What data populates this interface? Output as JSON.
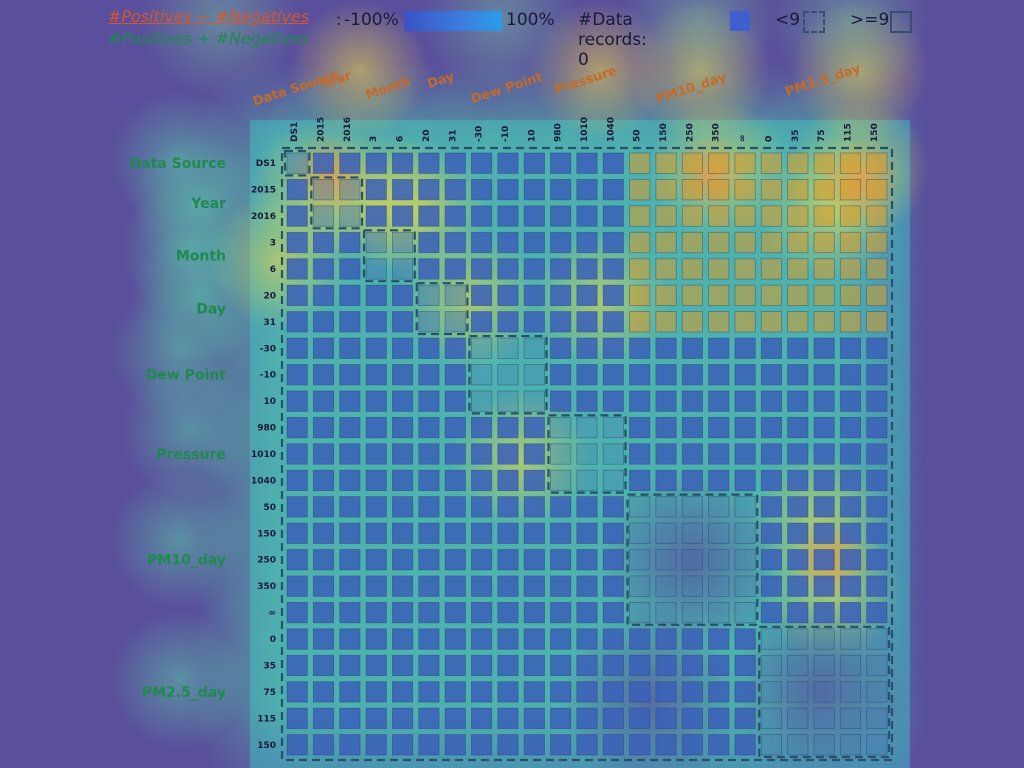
{
  "legend": {
    "numerator": "#Positives − #Negatives",
    "denominator": "#Positives + #Negatives",
    "colon": ":",
    "min_label": "-100%",
    "max_label": "100%",
    "records_label": "#Data records: 0",
    "lt_label": "<9",
    "ge_label": ">=9"
  },
  "colors": {
    "background": "#5a4f9c",
    "cell": "#3b5fb8",
    "cell_muted": "#4a64c8",
    "warm_cell": "#d89a2c",
    "dashed_border": "#27506a",
    "text_dark": "#1a1a3a"
  },
  "chart_data": {
    "type": "heatmap",
    "variables": [
      {
        "name": "Data Source",
        "ticks": [
          "DS1"
        ]
      },
      {
        "name": "Year",
        "ticks": [
          "2015",
          "2016"
        ]
      },
      {
        "name": "Month",
        "ticks": [
          "3",
          "6"
        ]
      },
      {
        "name": "Day",
        "ticks": [
          "20",
          "31"
        ]
      },
      {
        "name": "Dew Point",
        "ticks": [
          "-30",
          "-10",
          "10"
        ]
      },
      {
        "name": "Pressure",
        "ticks": [
          "980",
          "1010",
          "1040"
        ]
      },
      {
        "name": "PM10_day",
        "ticks": [
          "50",
          "150",
          "250",
          "350",
          "∞"
        ]
      },
      {
        "name": "PM2.5_day",
        "ticks": [
          "0",
          "35",
          "75",
          "115",
          "150"
        ]
      }
    ],
    "col_ticks": [
      "DS1",
      "2015",
      "2016",
      "3",
      "6",
      "20",
      "31",
      "-30",
      "-10",
      "10",
      "980",
      "1010",
      "1040",
      "50",
      "150",
      "250",
      "350",
      "∞",
      "0",
      "35",
      "75",
      "115",
      "150"
    ],
    "row_ticks": [
      "DS1",
      "2015",
      "2016",
      "3",
      "6",
      "20",
      "31",
      "-30",
      "-10",
      "10",
      "980",
      "1010",
      "1040",
      "50",
      "150",
      "250",
      "350",
      "∞",
      "0",
      "35",
      "75",
      "115",
      "150"
    ],
    "row_labels": [
      "Data Source",
      "Year",
      "Month",
      "Day",
      "Dew Point",
      "Pressure",
      "PM10_day",
      "PM2.5_day"
    ],
    "col_labels": [
      "Data Source",
      "Year",
      "Month",
      "Day",
      "Dew Point",
      "Pressure",
      "PM10_day",
      "PM2.5_day"
    ],
    "grid": true,
    "legend_position": "top"
  }
}
